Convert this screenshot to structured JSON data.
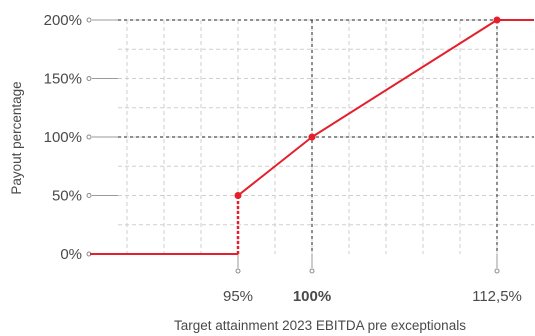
{
  "chart_data": {
    "type": "line",
    "xlabel": "Target attainment 2023 EBITDA pre exceptionals",
    "ylabel": "Payout percentage",
    "xlim": [
      85,
      115
    ],
    "ylim": [
      0,
      200
    ],
    "y_ticks": [
      {
        "value": 0,
        "label": "0%"
      },
      {
        "value": 50,
        "label": "50%"
      },
      {
        "value": 100,
        "label": "100%"
      },
      {
        "value": 150,
        "label": "150%"
      },
      {
        "value": 200,
        "label": "200%"
      }
    ],
    "x_ticks": [
      {
        "value": 95,
        "label": "95%",
        "bold": false
      },
      {
        "value": 100,
        "label": "100%",
        "bold": true
      },
      {
        "value": 112.5,
        "label": "112,5%",
        "bold": false
      }
    ],
    "series": [
      {
        "color": "#e3202c",
        "segments": [
          {
            "style": "solid",
            "points": [
              [
                85,
                0
              ],
              [
                95,
                0
              ]
            ]
          },
          {
            "style": "dotted",
            "points": [
              [
                95,
                0
              ],
              [
                95,
                50
              ]
            ]
          },
          {
            "style": "solid",
            "points": [
              [
                95,
                50
              ],
              [
                100,
                100
              ],
              [
                112.5,
                200
              ],
              [
                115,
                200
              ]
            ]
          }
        ],
        "markers": [
          [
            95,
            50
          ],
          [
            100,
            100
          ],
          [
            112.5,
            200
          ]
        ]
      }
    ],
    "reference_lines": {
      "horizontal": [
        100,
        200
      ],
      "vertical": [
        100,
        112.5
      ]
    },
    "grid": true,
    "colors": {
      "line": "#e3202c",
      "grid": "#cfcfcf",
      "reference": "#222222",
      "text": "#4a4a4a"
    }
  }
}
